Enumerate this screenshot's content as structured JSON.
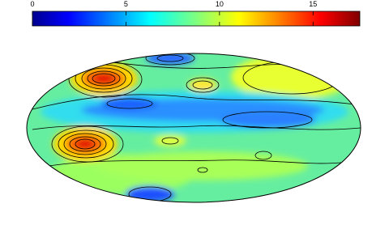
{
  "colorbar": {
    "range": [
      0,
      17.5
    ],
    "ticks": [
      0,
      5,
      10,
      15
    ]
  }
}
